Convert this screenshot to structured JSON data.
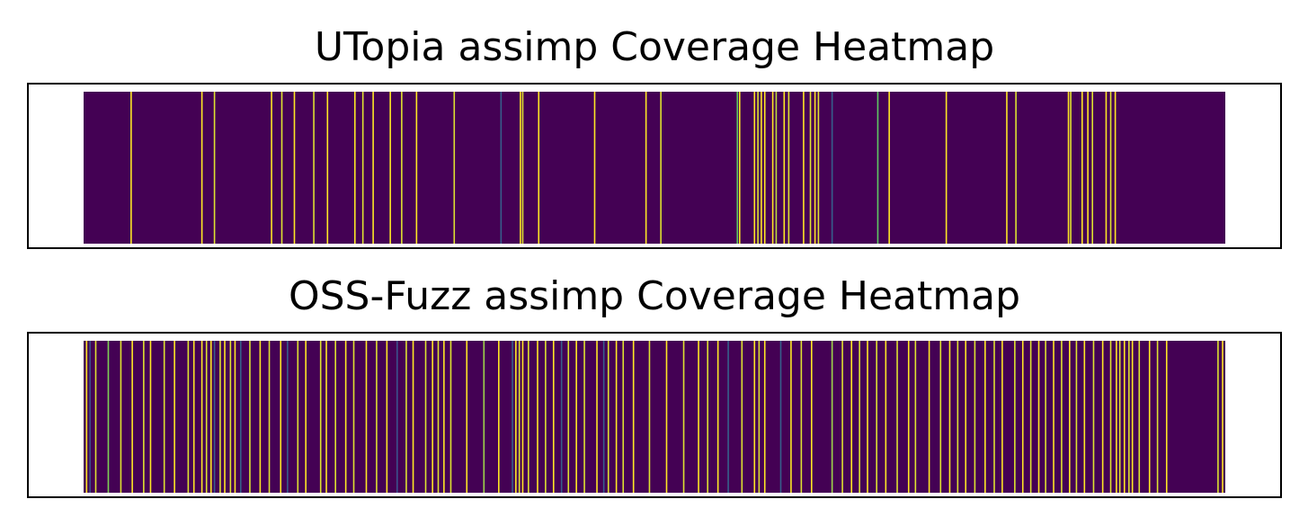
{
  "chart_data": [
    {
      "type": "heatmap",
      "title": "UTopia assimp Coverage Heatmap",
      "colormap": "viridis",
      "background": "#440154",
      "num_cells": 1000,
      "xticks": false,
      "yticks": false,
      "hot_cells": [
        {
          "x": 41,
          "v": 1.0
        },
        {
          "x": 103,
          "v": 1.0
        },
        {
          "x": 114,
          "v": 0.95
        },
        {
          "x": 164,
          "v": 1.0
        },
        {
          "x": 173,
          "v": 0.95
        },
        {
          "x": 184,
          "v": 1.0
        },
        {
          "x": 201,
          "v": 0.95
        },
        {
          "x": 213,
          "v": 1.0
        },
        {
          "x": 237,
          "v": 1.0
        },
        {
          "x": 244,
          "v": 0.95
        },
        {
          "x": 253,
          "v": 1.0
        },
        {
          "x": 268,
          "v": 1.0
        },
        {
          "x": 278,
          "v": 0.95
        },
        {
          "x": 291,
          "v": 1.0
        },
        {
          "x": 324,
          "v": 0.95
        },
        {
          "x": 365,
          "v": 0.3
        },
        {
          "x": 382,
          "v": 1.0
        },
        {
          "x": 384,
          "v": 0.95
        },
        {
          "x": 398,
          "v": 1.0
        },
        {
          "x": 447,
          "v": 1.0
        },
        {
          "x": 492,
          "v": 1.0
        },
        {
          "x": 505,
          "v": 0.95
        },
        {
          "x": 572,
          "v": 0.75
        },
        {
          "x": 574,
          "v": 1.0
        },
        {
          "x": 587,
          "v": 1.0
        },
        {
          "x": 590,
          "v": 0.95
        },
        {
          "x": 593,
          "v": 1.0
        },
        {
          "x": 596,
          "v": 1.0
        },
        {
          "x": 603,
          "v": 1.0
        },
        {
          "x": 606,
          "v": 0.9
        },
        {
          "x": 613,
          "v": 1.0
        },
        {
          "x": 617,
          "v": 0.95
        },
        {
          "x": 630,
          "v": 1.0
        },
        {
          "x": 636,
          "v": 0.95
        },
        {
          "x": 640,
          "v": 1.0
        },
        {
          "x": 643,
          "v": 0.95
        },
        {
          "x": 655,
          "v": 0.3
        },
        {
          "x": 695,
          "v": 0.75
        },
        {
          "x": 705,
          "v": 1.0
        },
        {
          "x": 755,
          "v": 1.0
        },
        {
          "x": 808,
          "v": 1.0
        },
        {
          "x": 816,
          "v": 0.95
        },
        {
          "x": 862,
          "v": 1.0
        },
        {
          "x": 864,
          "v": 0.95
        },
        {
          "x": 874,
          "v": 1.0
        },
        {
          "x": 879,
          "v": 1.0
        },
        {
          "x": 883,
          "v": 0.95
        },
        {
          "x": 895,
          "v": 1.0
        },
        {
          "x": 899,
          "v": 0.95
        },
        {
          "x": 903,
          "v": 1.0
        }
      ]
    },
    {
      "type": "heatmap",
      "title": "OSS-Fuzz assimp Coverage Heatmap",
      "colormap": "viridis",
      "background": "#440154",
      "num_cells": 1000,
      "xticks": false,
      "yticks": false,
      "hot_cells": [
        {
          "x": 2,
          "v": 1.0
        },
        {
          "x": 5,
          "v": 0.25
        },
        {
          "x": 10,
          "v": 0.95
        },
        {
          "x": 21,
          "v": 0.8
        },
        {
          "x": 32,
          "v": 0.95
        },
        {
          "x": 42,
          "v": 1.0
        },
        {
          "x": 52,
          "v": 0.95
        },
        {
          "x": 58,
          "v": 1.0
        },
        {
          "x": 70,
          "v": 0.95
        },
        {
          "x": 79,
          "v": 1.0
        },
        {
          "x": 91,
          "v": 0.95
        },
        {
          "x": 96,
          "v": 1.0
        },
        {
          "x": 103,
          "v": 1.0
        },
        {
          "x": 107,
          "v": 0.95
        },
        {
          "x": 111,
          "v": 1.0
        },
        {
          "x": 114,
          "v": 0.3
        },
        {
          "x": 119,
          "v": 0.95
        },
        {
          "x": 123,
          "v": 1.0
        },
        {
          "x": 128,
          "v": 0.95
        },
        {
          "x": 132,
          "v": 1.0
        },
        {
          "x": 137,
          "v": 0.3
        },
        {
          "x": 145,
          "v": 0.95
        },
        {
          "x": 154,
          "v": 1.0
        },
        {
          "x": 162,
          "v": 0.95
        },
        {
          "x": 172,
          "v": 1.0
        },
        {
          "x": 178,
          "v": 0.3
        },
        {
          "x": 187,
          "v": 0.95
        },
        {
          "x": 194,
          "v": 1.0
        },
        {
          "x": 207,
          "v": 0.95
        },
        {
          "x": 212,
          "v": 1.0
        },
        {
          "x": 220,
          "v": 0.95
        },
        {
          "x": 229,
          "v": 1.0
        },
        {
          "x": 236,
          "v": 0.95
        },
        {
          "x": 247,
          "v": 1.0
        },
        {
          "x": 256,
          "v": 0.95
        },
        {
          "x": 265,
          "v": 1.0
        },
        {
          "x": 274,
          "v": 0.25
        },
        {
          "x": 282,
          "v": 0.95
        },
        {
          "x": 288,
          "v": 1.0
        },
        {
          "x": 299,
          "v": 0.95
        },
        {
          "x": 305,
          "v": 1.0
        },
        {
          "x": 310,
          "v": 0.95
        },
        {
          "x": 315,
          "v": 1.0
        },
        {
          "x": 321,
          "v": 0.95
        },
        {
          "x": 335,
          "v": 1.0
        },
        {
          "x": 350,
          "v": 0.85
        },
        {
          "x": 363,
          "v": 1.0
        },
        {
          "x": 375,
          "v": 0.3
        },
        {
          "x": 378,
          "v": 1.0
        },
        {
          "x": 381,
          "v": 0.95
        },
        {
          "x": 384,
          "v": 1.0
        },
        {
          "x": 389,
          "v": 0.95
        },
        {
          "x": 397,
          "v": 1.0
        },
        {
          "x": 404,
          "v": 0.95
        },
        {
          "x": 411,
          "v": 1.0
        },
        {
          "x": 418,
          "v": 0.3
        },
        {
          "x": 424,
          "v": 0.95
        },
        {
          "x": 431,
          "v": 1.0
        },
        {
          "x": 438,
          "v": 0.95
        },
        {
          "x": 449,
          "v": 1.0
        },
        {
          "x": 455,
          "v": 0.3
        },
        {
          "x": 459,
          "v": 0.95
        },
        {
          "x": 466,
          "v": 1.0
        },
        {
          "x": 472,
          "v": 0.95
        },
        {
          "x": 481,
          "v": 1.0
        },
        {
          "x": 495,
          "v": 0.95
        },
        {
          "x": 510,
          "v": 1.0
        },
        {
          "x": 525,
          "v": 0.95
        },
        {
          "x": 538,
          "v": 1.0
        },
        {
          "x": 546,
          "v": 0.95
        },
        {
          "x": 555,
          "v": 1.0
        },
        {
          "x": 564,
          "v": 0.3
        },
        {
          "x": 576,
          "v": 0.95
        },
        {
          "x": 587,
          "v": 1.0
        },
        {
          "x": 591,
          "v": 0.95
        },
        {
          "x": 596,
          "v": 1.0
        },
        {
          "x": 610,
          "v": 0.3
        },
        {
          "x": 619,
          "v": 1.0
        },
        {
          "x": 628,
          "v": 0.95
        },
        {
          "x": 637,
          "v": 1.0
        },
        {
          "x": 655,
          "v": 0.85
        },
        {
          "x": 664,
          "v": 0.95
        },
        {
          "x": 672,
          "v": 1.0
        },
        {
          "x": 679,
          "v": 0.95
        },
        {
          "x": 686,
          "v": 1.0
        },
        {
          "x": 694,
          "v": 0.95
        },
        {
          "x": 702,
          "v": 1.0
        },
        {
          "x": 712,
          "v": 0.95
        },
        {
          "x": 722,
          "v": 1.0
        },
        {
          "x": 728,
          "v": 0.95
        },
        {
          "x": 740,
          "v": 1.0
        },
        {
          "x": 750,
          "v": 0.95
        },
        {
          "x": 758,
          "v": 1.0
        },
        {
          "x": 765,
          "v": 0.95
        },
        {
          "x": 772,
          "v": 1.0
        },
        {
          "x": 780,
          "v": 0.95
        },
        {
          "x": 789,
          "v": 1.0
        },
        {
          "x": 797,
          "v": 0.95
        },
        {
          "x": 804,
          "v": 1.0
        },
        {
          "x": 815,
          "v": 0.95
        },
        {
          "x": 822,
          "v": 1.0
        },
        {
          "x": 829,
          "v": 0.95
        },
        {
          "x": 836,
          "v": 1.0
        },
        {
          "x": 842,
          "v": 0.95
        },
        {
          "x": 849,
          "v": 1.0
        },
        {
          "x": 856,
          "v": 0.95
        },
        {
          "x": 863,
          "v": 1.0
        },
        {
          "x": 869,
          "v": 0.95
        },
        {
          "x": 876,
          "v": 1.0
        },
        {
          "x": 884,
          "v": 0.95
        },
        {
          "x": 892,
          "v": 1.0
        },
        {
          "x": 899,
          "v": 0.95
        },
        {
          "x": 904,
          "v": 1.0
        },
        {
          "x": 907,
          "v": 0.95
        },
        {
          "x": 911,
          "v": 1.0
        },
        {
          "x": 915,
          "v": 0.95
        },
        {
          "x": 918,
          "v": 1.0
        },
        {
          "x": 924,
          "v": 0.95
        },
        {
          "x": 933,
          "v": 1.0
        },
        {
          "x": 940,
          "v": 0.95
        },
        {
          "x": 948,
          "v": 1.0
        },
        {
          "x": 993,
          "v": 0.95
        },
        {
          "x": 997,
          "v": 1.0
        }
      ]
    }
  ]
}
